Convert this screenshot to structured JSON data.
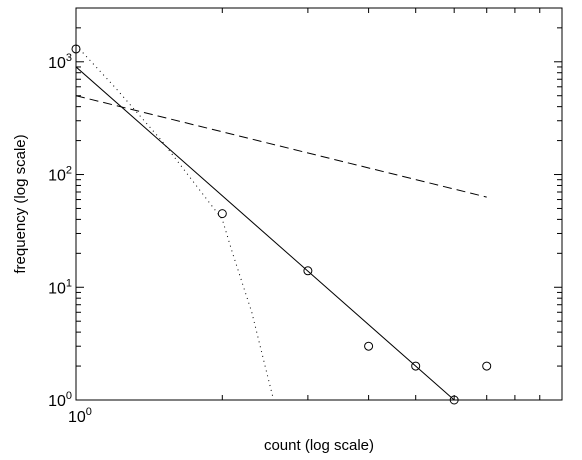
{
  "chart_data": {
    "type": "scatter",
    "title": "",
    "xlabel": "count (log scale)",
    "ylabel": "frequency (log scale)",
    "x_scale": "log",
    "y_scale": "log",
    "xlim": [
      1,
      10
    ],
    "ylim": [
      1,
      3000
    ],
    "grid": false,
    "legend": "none",
    "x_ticks": [
      1
    ],
    "x_tick_labels": [
      {
        "base": "10",
        "exp": "0"
      }
    ],
    "y_ticks": [
      1,
      10,
      100,
      1000
    ],
    "y_tick_labels": [
      {
        "base": "10",
        "exp": "0"
      },
      {
        "base": "10",
        "exp": "1"
      },
      {
        "base": "10",
        "exp": "2"
      },
      {
        "base": "10",
        "exp": "3"
      }
    ],
    "series": [
      {
        "style": "markers",
        "marker": "circle",
        "x": [
          1,
          2,
          3,
          4,
          5,
          6,
          7
        ],
        "y": [
          1300,
          45,
          14,
          3,
          2,
          1,
          2
        ]
      },
      {
        "style": "solid",
        "x": [
          1,
          6
        ],
        "y": [
          900,
          1
        ]
      },
      {
        "style": "dashed",
        "x": [
          1,
          7
        ],
        "y": [
          500,
          63
        ]
      },
      {
        "style": "dotted",
        "x": [
          1,
          1.2,
          1.5,
          2,
          2.1,
          2.3,
          2.45,
          2.55
        ],
        "y": [
          1400,
          600,
          200,
          40,
          20,
          6,
          2,
          1
        ]
      }
    ]
  }
}
